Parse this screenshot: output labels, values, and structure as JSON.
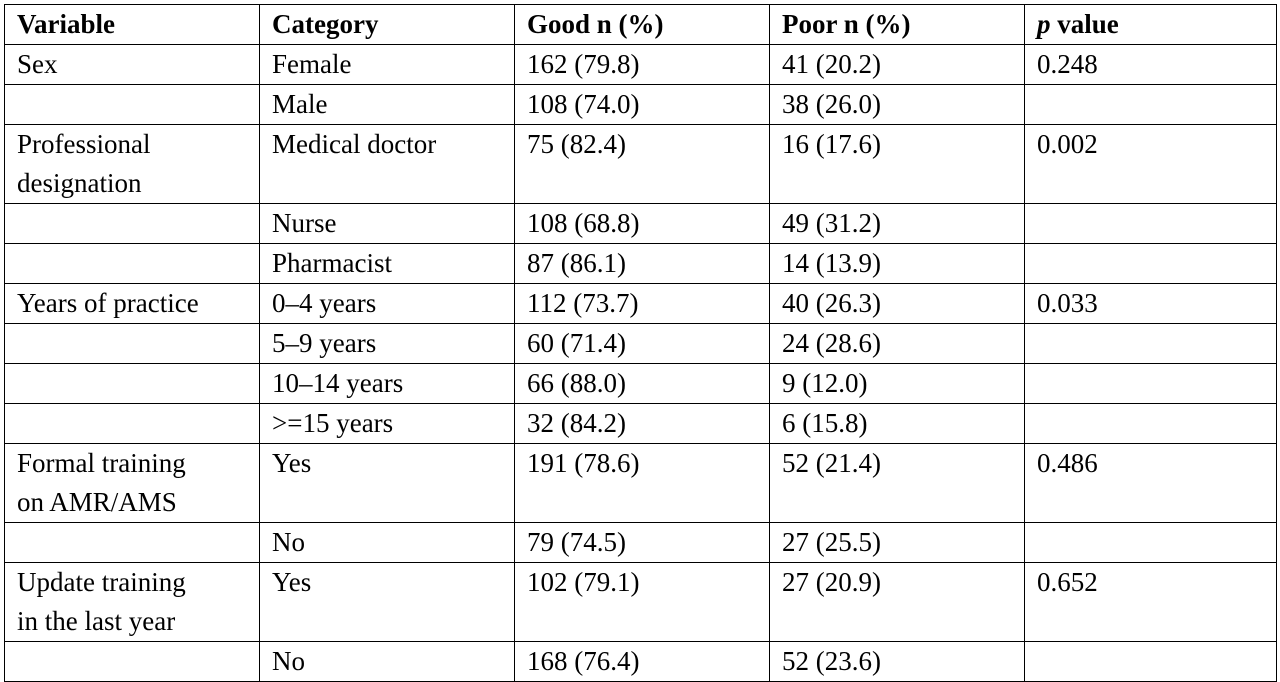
{
  "header": {
    "variable": "Variable",
    "category": "Category",
    "good": "Good n (%)",
    "poor": "Poor n (%)",
    "p_italic": "p",
    "p_rest": " value"
  },
  "rows": [
    {
      "variable_lines": [
        "Sex"
      ],
      "category": "Female",
      "good": "162 (79.8)",
      "poor": "41 (20.2)",
      "p": "0.248",
      "tall": false
    },
    {
      "variable_lines": [],
      "category": "Male",
      "good": "108 (74.0)",
      "poor": "38 (26.0)",
      "p": "",
      "tall": false
    },
    {
      "variable_lines": [
        "Professional",
        "designation"
      ],
      "category": "Medical doctor",
      "good": "75 (82.4)",
      "poor": "16 (17.6)",
      "p": "0.002",
      "tall": true
    },
    {
      "variable_lines": [],
      "category": "Nurse",
      "good": "108 (68.8)",
      "poor": "49 (31.2)",
      "p": "",
      "tall": false
    },
    {
      "variable_lines": [],
      "category": "Pharmacist",
      "good": "87 (86.1)",
      "poor": "14 (13.9)",
      "p": "",
      "tall": false
    },
    {
      "variable_lines": [
        "Years of practice"
      ],
      "category": "0–4 years",
      "good": "112 (73.7)",
      "poor": "40 (26.3)",
      "p": "0.033",
      "tall": false
    },
    {
      "variable_lines": [],
      "category": "5–9 years",
      "good": "60 (71.4)",
      "poor": "24 (28.6)",
      "p": "",
      "tall": false
    },
    {
      "variable_lines": [],
      "category": "10–14 years",
      "good": "66 (88.0)",
      "poor": "9 (12.0)",
      "p": "",
      "tall": false
    },
    {
      "variable_lines": [],
      "category": ">=15 years",
      "good": "32 (84.2)",
      "poor": "6 (15.8)",
      "p": "",
      "tall": false
    },
    {
      "variable_lines": [
        "Formal training",
        "on AMR/AMS"
      ],
      "category": "Yes",
      "good": "191 (78.6)",
      "poor": "52 (21.4)",
      "p": "0.486",
      "tall": true
    },
    {
      "variable_lines": [],
      "category": "No",
      "good": "79 (74.5)",
      "poor": "27 (25.5)",
      "p": "",
      "tall": false
    },
    {
      "variable_lines": [
        "Update training",
        "in the last year"
      ],
      "category": "Yes",
      "good": "102 (79.1)",
      "poor": "27 (20.9)",
      "p": "0.652",
      "tall": true
    },
    {
      "variable_lines": [],
      "category": "No",
      "good": "168 (76.4)",
      "poor": "52 (23.6)",
      "p": "",
      "tall": false
    }
  ]
}
